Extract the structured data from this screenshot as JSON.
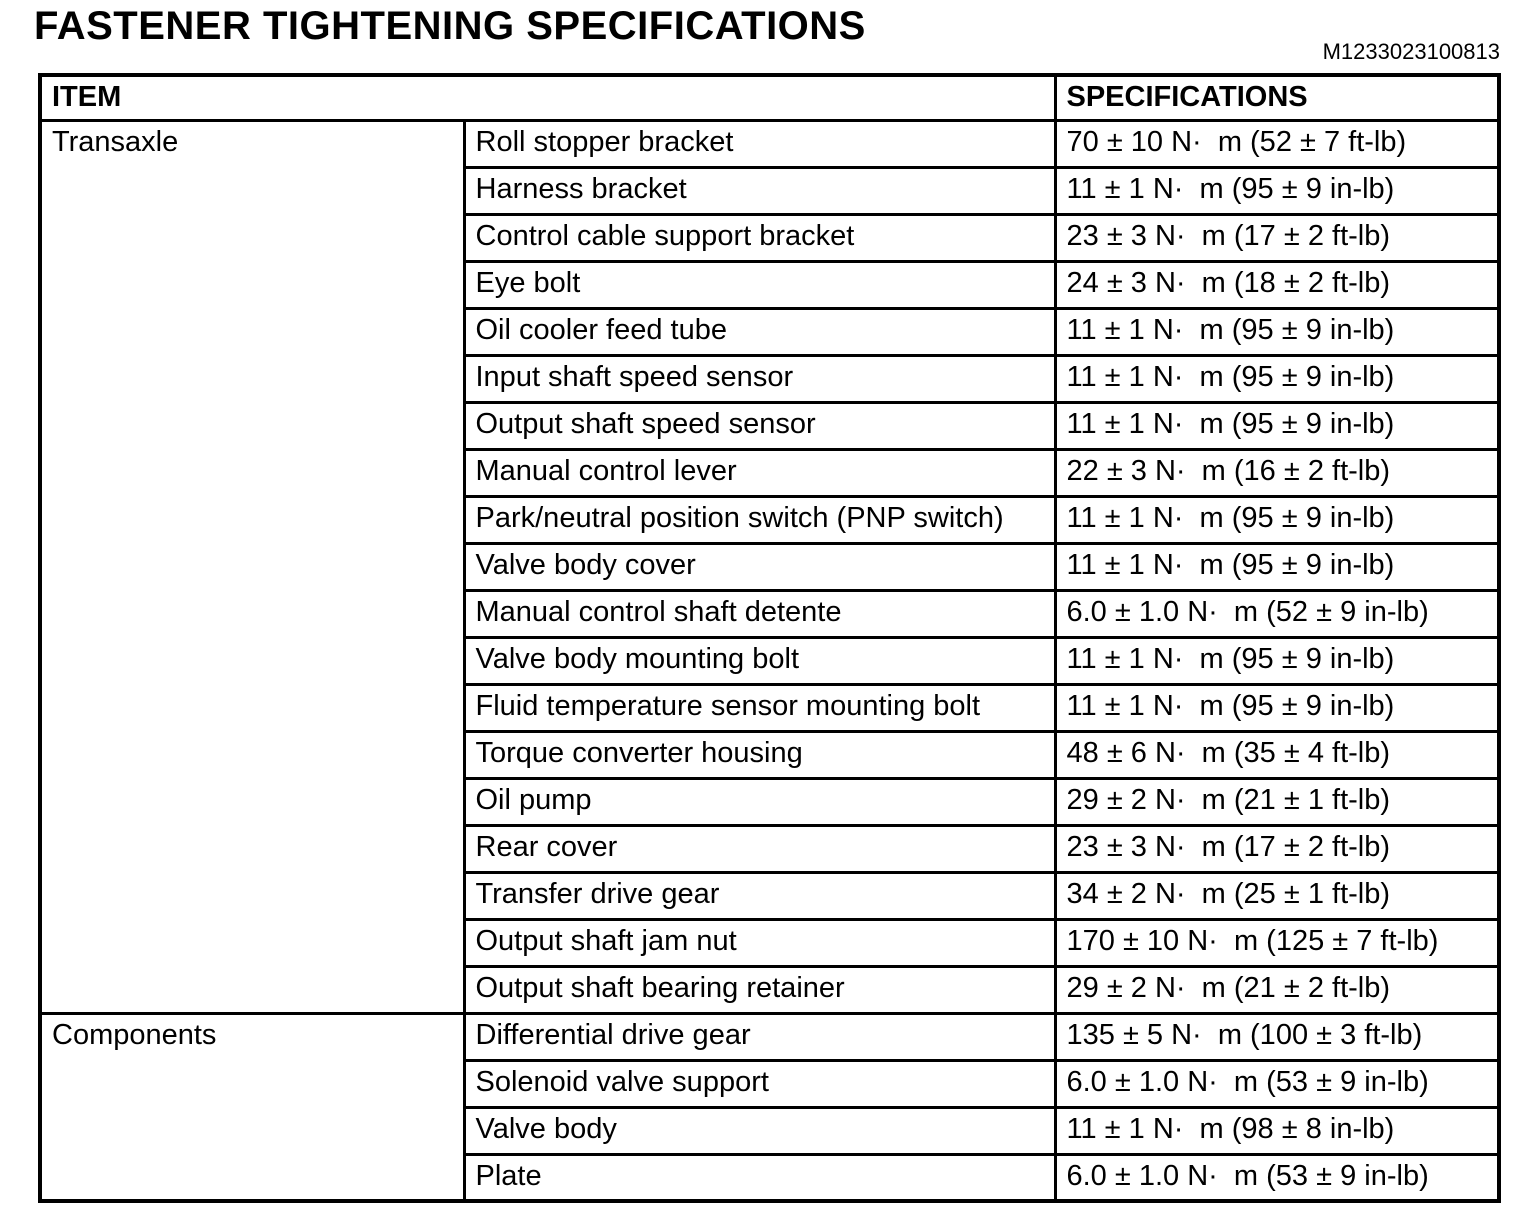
{
  "page": {
    "title": "FASTENER TIGHTENING SPECIFICATIONS",
    "doc_code": "M1233023100813"
  },
  "table": {
    "headers": {
      "item": "ITEM",
      "specifications": "SPECIFICATIONS"
    },
    "groups": [
      {
        "name": "Transaxle",
        "rows": [
          {
            "item": "Roll stopper bracket",
            "spec": "70 ± 10 N·  m (52 ± 7 ft-lb)"
          },
          {
            "item": "Harness bracket",
            "spec": "11 ± 1 N·  m (95 ± 9 in-lb)"
          },
          {
            "item": "Control cable support bracket",
            "spec": "23 ± 3 N·  m (17 ± 2 ft-lb)"
          },
          {
            "item": "Eye bolt",
            "spec": "24 ± 3 N·  m (18 ± 2 ft-lb)"
          },
          {
            "item": "Oil cooler feed tube",
            "spec": "11 ± 1 N·  m (95 ± 9 in-lb)"
          },
          {
            "item": "Input shaft speed sensor",
            "spec": "11 ± 1 N·  m (95 ± 9 in-lb)"
          },
          {
            "item": "Output shaft speed sensor",
            "spec": "11 ± 1 N·  m (95 ± 9 in-lb)"
          },
          {
            "item": "Manual control lever",
            "spec": "22 ± 3 N·  m (16 ± 2 ft-lb)"
          },
          {
            "item": "Park/neutral position switch (PNP switch)",
            "spec": "11 ± 1 N·  m (95 ± 9 in-lb)"
          },
          {
            "item": "Valve body cover",
            "spec": "11 ± 1 N·  m (95 ± 9 in-lb)"
          },
          {
            "item": "Manual control shaft detente",
            "spec": "6.0 ± 1.0 N·  m (52 ± 9 in-lb)"
          },
          {
            "item": "Valve body mounting bolt",
            "spec": "11 ± 1 N·  m (95 ± 9 in-lb)"
          },
          {
            "item": "Fluid temperature sensor mounting bolt",
            "spec": "11 ± 1 N·  m (95 ± 9 in-lb)"
          },
          {
            "item": "Torque converter housing",
            "spec": "48 ± 6 N·  m (35 ± 4 ft-lb)"
          },
          {
            "item": "Oil pump",
            "spec": "29 ± 2 N·  m (21 ± 1 ft-lb)"
          },
          {
            "item": "Rear cover",
            "spec": "23 ± 3 N·  m (17 ± 2 ft-lb)"
          },
          {
            "item": "Transfer drive gear",
            "spec": "34 ± 2 N·  m (25 ± 1 ft-lb)"
          },
          {
            "item": "Output shaft jam nut",
            "spec": "170 ± 10 N·  m (125 ± 7 ft-lb)"
          },
          {
            "item": "Output shaft bearing retainer",
            "spec": "29 ± 2 N·  m (21 ± 2 ft-lb)"
          }
        ]
      },
      {
        "name": "Components",
        "rows": [
          {
            "item": "Differential drive gear",
            "spec": "135 ± 5 N·  m (100 ± 3 ft-lb)"
          },
          {
            "item": "Solenoid valve support",
            "spec": "6.0 ± 1.0 N·  m (53 ± 9 in-lb)"
          },
          {
            "item": "Valve body",
            "spec": "11 ± 1 N·  m (98 ± 8 in-lb)"
          },
          {
            "item": "Plate",
            "spec": "6.0 ± 1.0 N·  m (53 ± 9 in-lb)"
          }
        ]
      }
    ]
  }
}
